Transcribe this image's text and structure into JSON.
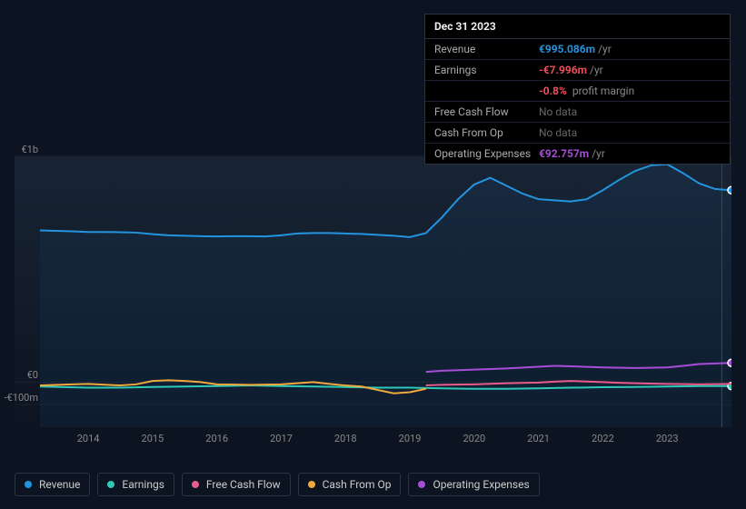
{
  "tooltip": {
    "date": "Dec 31 2023",
    "rows": [
      {
        "label": "Revenue",
        "value": "€995.086m",
        "unit": "/yr",
        "color": "#2394df"
      },
      {
        "label": "Earnings",
        "value": "-€7.996m",
        "unit": "/yr",
        "color": "#eb4d5c",
        "extra_value": "-0.8%",
        "extra_label": "profit margin",
        "extra_color": "#eb4d5c"
      },
      {
        "label": "Free Cash Flow",
        "nodata": "No data"
      },
      {
        "label": "Cash From Op",
        "nodata": "No data"
      },
      {
        "label": "Operating Expenses",
        "value": "€92.757m",
        "unit": "/yr",
        "color": "#a74dd8"
      }
    ]
  },
  "chart": {
    "type": "line",
    "background": "#0d1421",
    "plot_gradient_top": "#182434",
    "plot_gradient_bottom": "#0d1421",
    "grid_color": "#1a2230",
    "axis_text_color": "#888888",
    "y_min": -200,
    "y_max": 1000,
    "y_ticks": [
      {
        "value": 1000,
        "label": "€1b"
      },
      {
        "value": 0,
        "label": "€0"
      },
      {
        "value": -100,
        "label": "-€100m"
      }
    ],
    "x_years": [
      2014,
      2015,
      2016,
      2017,
      2018,
      2019,
      2020,
      2021,
      2022,
      2023
    ],
    "x_min": 2013.25,
    "x_max": 2024.0,
    "indicator_x": 2023.85,
    "series": [
      {
        "name": "Revenue",
        "color": "#2394df",
        "line_width": 2,
        "fill": true,
        "fill_opacity": 0.07,
        "data": [
          [
            2013.25,
            672
          ],
          [
            2013.5,
            670
          ],
          [
            2013.75,
            668
          ],
          [
            2014,
            665
          ],
          [
            2014.25,
            665
          ],
          [
            2014.5,
            664
          ],
          [
            2014.75,
            662
          ],
          [
            2015,
            655
          ],
          [
            2015.25,
            650
          ],
          [
            2015.5,
            648
          ],
          [
            2015.75,
            646
          ],
          [
            2016,
            645
          ],
          [
            2016.25,
            646
          ],
          [
            2016.5,
            646
          ],
          [
            2016.75,
            645
          ],
          [
            2017,
            650
          ],
          [
            2017.25,
            658
          ],
          [
            2017.5,
            660
          ],
          [
            2017.75,
            660
          ],
          [
            2018,
            658
          ],
          [
            2018.25,
            656
          ],
          [
            2018.5,
            652
          ],
          [
            2018.75,
            648
          ],
          [
            2019,
            642
          ],
          [
            2019.25,
            660
          ],
          [
            2019.5,
            730
          ],
          [
            2019.75,
            810
          ],
          [
            2020,
            875
          ],
          [
            2020.25,
            905
          ],
          [
            2020.5,
            870
          ],
          [
            2020.75,
            835
          ],
          [
            2021,
            810
          ],
          [
            2021.25,
            805
          ],
          [
            2021.5,
            800
          ],
          [
            2021.75,
            810
          ],
          [
            2022,
            850
          ],
          [
            2022.25,
            895
          ],
          [
            2022.5,
            935
          ],
          [
            2022.75,
            960
          ],
          [
            2023,
            965
          ],
          [
            2023.25,
            925
          ],
          [
            2023.5,
            880
          ],
          [
            2023.75,
            855
          ],
          [
            2024,
            850
          ]
        ],
        "end_marker": true
      },
      {
        "name": "Earnings",
        "color": "#2dc9b6",
        "line_width": 2,
        "data": [
          [
            2013.25,
            -20
          ],
          [
            2014,
            -25
          ],
          [
            2014.5,
            -25
          ],
          [
            2015,
            -22
          ],
          [
            2015.5,
            -20
          ],
          [
            2016,
            -18
          ],
          [
            2016.5,
            -15
          ],
          [
            2017,
            -18
          ],
          [
            2017.5,
            -20
          ],
          [
            2018,
            -22
          ],
          [
            2018.5,
            -25
          ],
          [
            2019,
            -25
          ],
          [
            2019.5,
            -28
          ],
          [
            2020,
            -30
          ],
          [
            2020.5,
            -30
          ],
          [
            2021,
            -28
          ],
          [
            2021.5,
            -25
          ],
          [
            2022,
            -23
          ],
          [
            2022.5,
            -22
          ],
          [
            2023,
            -20
          ],
          [
            2023.5,
            -18
          ],
          [
            2024,
            -18
          ]
        ],
        "end_marker": true
      },
      {
        "name": "Free Cash Flow",
        "color": "#e85b8e",
        "line_width": 2,
        "data": [
          [
            2019.25,
            -15
          ],
          [
            2019.5,
            -12
          ],
          [
            2020,
            -10
          ],
          [
            2020.5,
            -5
          ],
          [
            2021,
            -2
          ],
          [
            2021.25,
            2
          ],
          [
            2021.5,
            5
          ],
          [
            2022,
            0
          ],
          [
            2022.25,
            -3
          ],
          [
            2022.5,
            -5
          ],
          [
            2023,
            -8
          ],
          [
            2023.5,
            -10
          ],
          [
            2024,
            -8
          ]
        ]
      },
      {
        "name": "Cash From Op",
        "color": "#eea83c",
        "line_width": 2,
        "data": [
          [
            2013.25,
            -15
          ],
          [
            2013.75,
            -10
          ],
          [
            2014,
            -8
          ],
          [
            2014.5,
            -15
          ],
          [
            2014.75,
            -10
          ],
          [
            2015,
            5
          ],
          [
            2015.25,
            8
          ],
          [
            2015.5,
            5
          ],
          [
            2015.75,
            0
          ],
          [
            2016,
            -10
          ],
          [
            2016.5,
            -12
          ],
          [
            2017,
            -10
          ],
          [
            2017.25,
            -5
          ],
          [
            2017.5,
            0
          ],
          [
            2017.75,
            -8
          ],
          [
            2018,
            -15
          ],
          [
            2018.25,
            -20
          ],
          [
            2018.5,
            -35
          ],
          [
            2018.75,
            -50
          ],
          [
            2019,
            -45
          ],
          [
            2019.25,
            -30
          ]
        ]
      },
      {
        "name": "Operating Expenses",
        "color": "#a74dd8",
        "line_width": 2,
        "data": [
          [
            2019.25,
            45
          ],
          [
            2019.5,
            50
          ],
          [
            2020,
            55
          ],
          [
            2020.5,
            60
          ],
          [
            2021,
            68
          ],
          [
            2021.25,
            72
          ],
          [
            2021.5,
            70
          ],
          [
            2022,
            65
          ],
          [
            2022.5,
            62
          ],
          [
            2023,
            65
          ],
          [
            2023.25,
            72
          ],
          [
            2023.5,
            80
          ],
          [
            2024,
            85
          ]
        ],
        "end_marker": true
      }
    ]
  },
  "legend": [
    {
      "label": "Revenue",
      "color": "#2394df"
    },
    {
      "label": "Earnings",
      "color": "#2dc9b6"
    },
    {
      "label": "Free Cash Flow",
      "color": "#e85b8e"
    },
    {
      "label": "Cash From Op",
      "color": "#eea83c"
    },
    {
      "label": "Operating Expenses",
      "color": "#a74dd8"
    }
  ]
}
